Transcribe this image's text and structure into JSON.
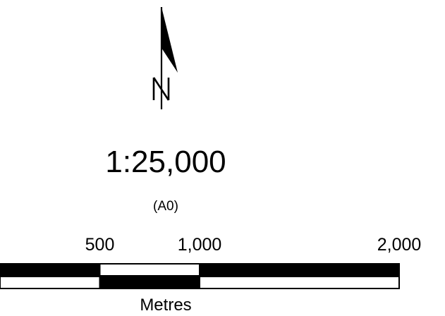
{
  "north_arrow": {
    "label": "N",
    "icon": "north-arrow-icon"
  },
  "scale": {
    "ratio": "1:25,000",
    "paper_size": "(A0)"
  },
  "scale_bar": {
    "units": "Metres",
    "ticks": [
      {
        "value": 500,
        "label": "500"
      },
      {
        "value": 1000,
        "label": "1,000"
      },
      {
        "value": 2000,
        "label": "2,000"
      }
    ]
  }
}
